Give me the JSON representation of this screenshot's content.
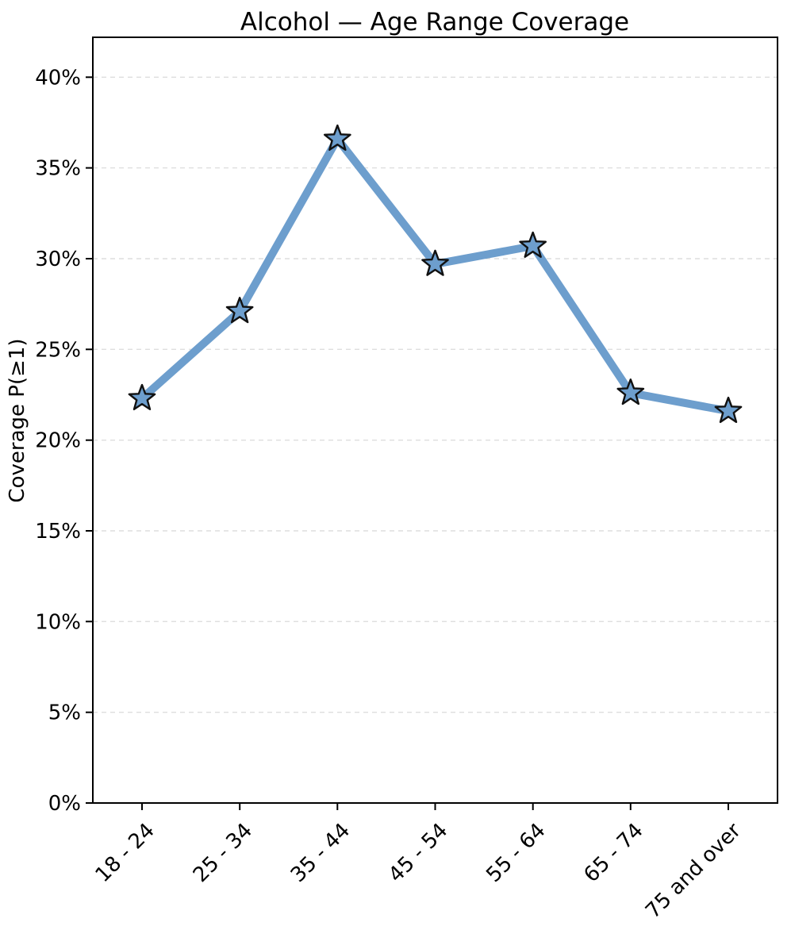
{
  "chart_data": {
    "type": "line",
    "title": "Alcohol — Age Range Coverage",
    "xlabel": "",
    "ylabel": "Coverage P(≥1)",
    "categories": [
      "18 - 24",
      "25 - 34",
      "35 - 44",
      "45 - 54",
      "55 - 64",
      "65 - 74",
      "75 and over"
    ],
    "series": [
      {
        "name": "Coverage P(≥1)",
        "values": [
          22.3,
          27.1,
          36.6,
          29.7,
          30.7,
          22.6,
          21.6
        ]
      }
    ],
    "ylim": [
      0,
      42.2
    ],
    "yticks": [
      0,
      5,
      10,
      15,
      20,
      25,
      30,
      35,
      40
    ],
    "ytick_suffix": "%",
    "xtick_rotation_deg": 45,
    "grid": "horizontal-dashed",
    "legend": "none",
    "marker": "star",
    "colors": {
      "line": "#6d9ecd",
      "marker_fill": "#6d9ecd",
      "marker_edge": "#111111",
      "grid": "#dedede",
      "axis": "#000000",
      "background": "#ffffff"
    }
  }
}
